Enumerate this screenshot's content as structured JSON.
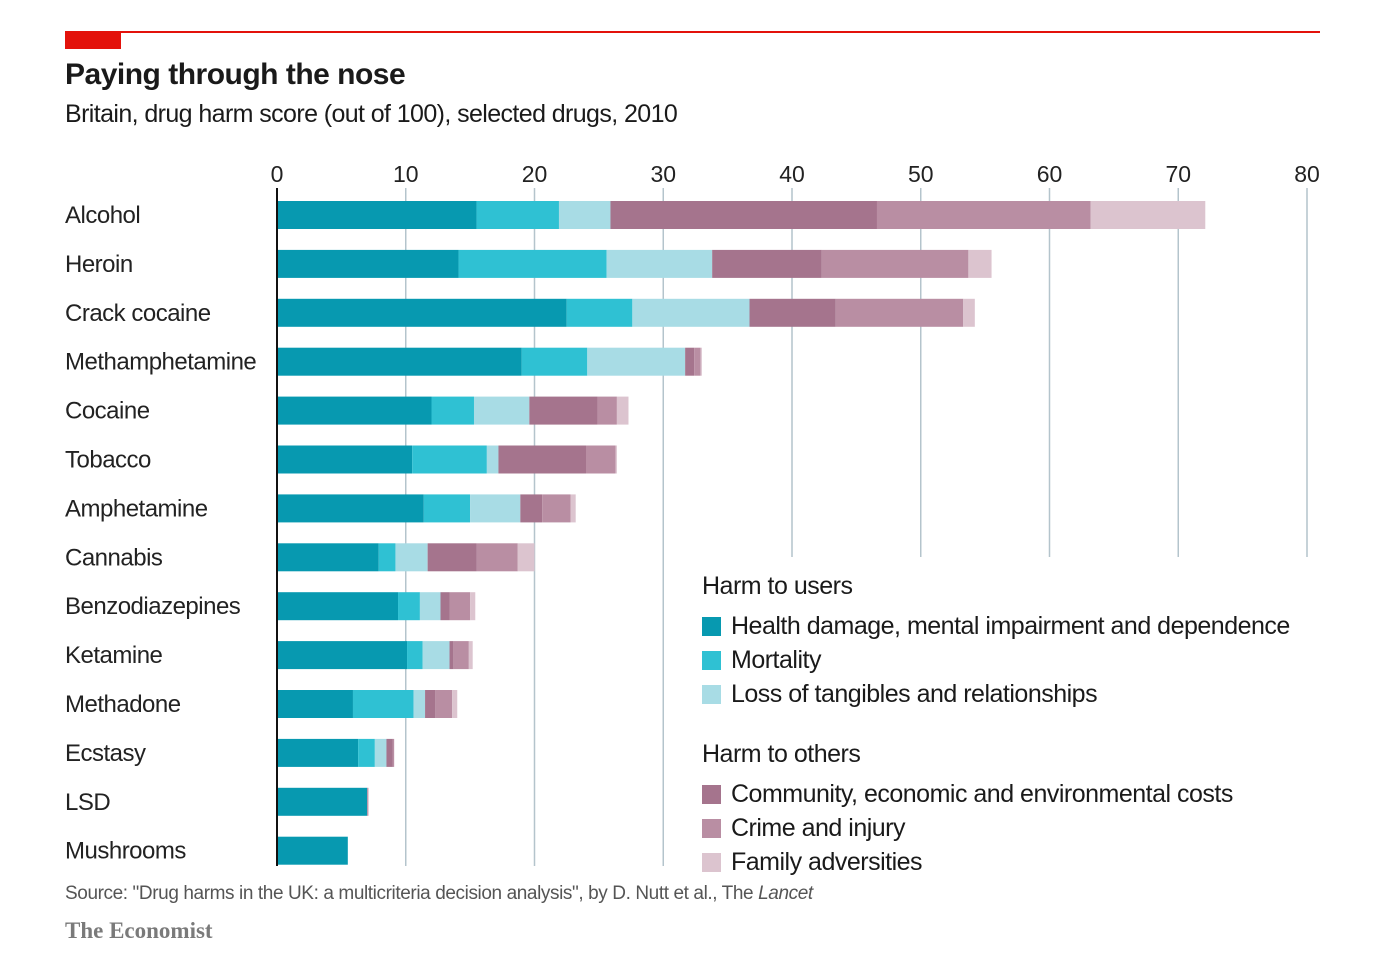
{
  "header": {
    "title": "Paying through the nose",
    "subtitle": "Britain, drug harm score (out of 100), selected drugs, 2010"
  },
  "footer": {
    "source_prefix": "Source: \"Drug harms in the UK: a multicriteria decision analysis\", by D. Nutt et al., The ",
    "source_journal": "Lancet",
    "brand": "The Economist"
  },
  "chart_data": {
    "type": "bar",
    "orientation": "horizontal-stacked",
    "title": "Paying through the nose",
    "subtitle": "Britain, drug harm score (out of 100), selected drugs, 2010",
    "xlim": [
      0,
      80
    ],
    "xticks": [
      0,
      10,
      20,
      30,
      40,
      50,
      60,
      70,
      80
    ],
    "grid": true,
    "legend_placement": "bottom-right",
    "categories": [
      "Alcohol",
      "Heroin",
      "Crack cocaine",
      "Methamphetamine",
      "Cocaine",
      "Tobacco",
      "Amphetamine",
      "Cannabis",
      "Benzodiazepines",
      "Ketamine",
      "Methadone",
      "Ecstasy",
      "LSD",
      "Mushrooms"
    ],
    "legend_groups": [
      {
        "title": "Harm to users",
        "series_idx": [
          0,
          1,
          2
        ]
      },
      {
        "title": "Harm to others",
        "series_idx": [
          3,
          4,
          5
        ]
      }
    ],
    "series": [
      {
        "name": "Health damage, mental impairment and dependence",
        "color": "#0799b0",
        "values": [
          15.5,
          14.1,
          22.5,
          19.0,
          12.0,
          10.5,
          11.4,
          7.9,
          9.4,
          10.1,
          5.9,
          6.3,
          7.0,
          5.5
        ]
      },
      {
        "name": "Mortality",
        "color": "#2fc1d3",
        "values": [
          6.4,
          11.5,
          5.1,
          5.1,
          3.3,
          5.8,
          3.6,
          1.3,
          1.7,
          1.2,
          4.7,
          1.3,
          0,
          0
        ]
      },
      {
        "name": "Loss of tangibles and relationships",
        "color": "#a8dce5",
        "values": [
          4.0,
          8.2,
          9.1,
          7.6,
          4.3,
          0.9,
          3.9,
          2.5,
          1.6,
          2.1,
          0.9,
          0.9,
          0,
          0
        ]
      },
      {
        "name": "Community, economic and environmental costs",
        "color": "#a5748d",
        "values": [
          20.7,
          8.5,
          6.7,
          0.7,
          5.3,
          6.8,
          1.7,
          3.8,
          0.7,
          0.3,
          0.8,
          0.5,
          0,
          0
        ]
      },
      {
        "name": "Crime and injury",
        "color": "#b98ea3",
        "values": [
          16.6,
          11.4,
          9.9,
          0.5,
          1.5,
          2.3,
          2.2,
          3.2,
          1.6,
          1.2,
          1.3,
          0.1,
          0.1,
          0
        ]
      },
      {
        "name": "Family adversities",
        "color": "#dcc4cf",
        "values": [
          8.9,
          1.8,
          0.9,
          0.1,
          0.9,
          0.1,
          0.4,
          1.3,
          0.4,
          0.3,
          0.4,
          0,
          0,
          0
        ]
      }
    ]
  }
}
